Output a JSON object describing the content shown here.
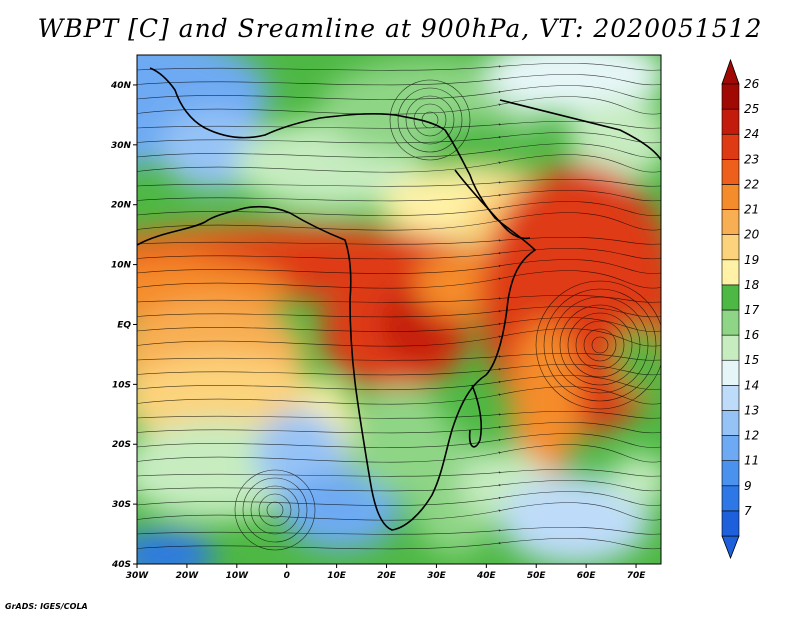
{
  "title": "WBPT [C] and Sreamline at 900hPa, VT: 2020051512",
  "credit": "GrADS: IGES/COLA",
  "map": {
    "lon_range": [
      -30,
      75
    ],
    "lat_range": [
      -40,
      45
    ],
    "lon_ticks": [
      {
        "value": -30,
        "label": "30W"
      },
      {
        "value": -20,
        "label": "20W"
      },
      {
        "value": -10,
        "label": "10W"
      },
      {
        "value": 0,
        "label": "0"
      },
      {
        "value": 10,
        "label": "10E"
      },
      {
        "value": 20,
        "label": "20E"
      },
      {
        "value": 30,
        "label": "30E"
      },
      {
        "value": 40,
        "label": "40E"
      },
      {
        "value": 50,
        "label": "50E"
      },
      {
        "value": 60,
        "label": "60E"
      },
      {
        "value": 70,
        "label": "70E"
      }
    ],
    "lat_ticks": [
      {
        "value": 40,
        "label": "40N"
      },
      {
        "value": 30,
        "label": "30N"
      },
      {
        "value": 20,
        "label": "20N"
      },
      {
        "value": 10,
        "label": "10N"
      },
      {
        "value": 0,
        "label": "EQ"
      },
      {
        "value": -10,
        "label": "10S"
      },
      {
        "value": -20,
        "label": "20S"
      },
      {
        "value": -30,
        "label": "30S"
      },
      {
        "value": -40,
        "label": "40S"
      }
    ]
  },
  "colorbar": {
    "levels": [
      {
        "label": "7",
        "color": "#1e5fdc"
      },
      {
        "label": "9",
        "color": "#2d78e6"
      },
      {
        "label": "11",
        "color": "#4a92ee"
      },
      {
        "label": "12",
        "color": "#6eaaf3"
      },
      {
        "label": "13",
        "color": "#96c3f6"
      },
      {
        "label": "14",
        "color": "#bedcf9"
      },
      {
        "label": "15",
        "color": "#e6f6f8"
      },
      {
        "label": "16",
        "color": "#c6ecc0"
      },
      {
        "label": "17",
        "color": "#8fd586"
      },
      {
        "label": "18",
        "color": "#4eb844"
      },
      {
        "label": "19",
        "color": "#fff2a6"
      },
      {
        "label": "20",
        "color": "#fcd37c"
      },
      {
        "label": "21",
        "color": "#f8ae52"
      },
      {
        "label": "22",
        "color": "#f58c2c"
      },
      {
        "label": "23",
        "color": "#ee5f1c"
      },
      {
        "label": "24",
        "color": "#de3a14"
      },
      {
        "label": "25",
        "color": "#c41c0c"
      },
      {
        "label": "26",
        "color": "#a10a04"
      }
    ]
  }
}
